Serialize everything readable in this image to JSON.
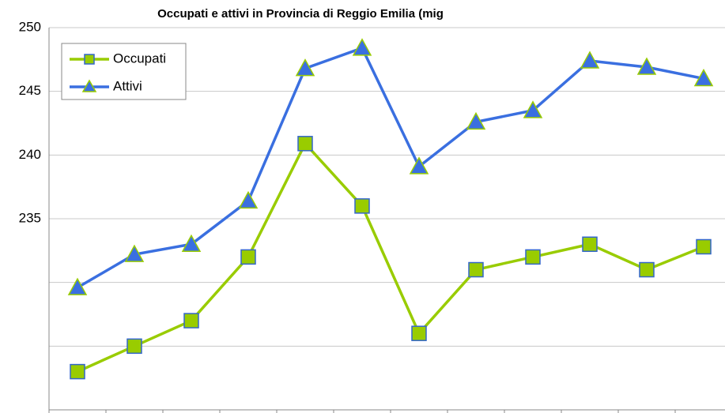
{
  "chart_data": {
    "type": "line",
    "title": "Occupati e attivi in Provincia di Reggio Emilia (mig",
    "categories": [
      null,
      null,
      null,
      null,
      null,
      null,
      null,
      null,
      null,
      null,
      null,
      null
    ],
    "series": [
      {
        "name": "Occupati",
        "color": "#99cc00",
        "marker": "square",
        "marker_color": "#99cc00",
        "marker_edge": "#3366cc",
        "values": [
          223.0,
          225.0,
          227.0,
          232.0,
          240.9,
          236.0,
          226.0,
          231.0,
          232.0,
          233.0,
          231.0,
          232.8
        ]
      },
      {
        "name": "Attivi",
        "color": "#3a6fe0",
        "marker": "triangle",
        "marker_color": "#3a6fe0",
        "marker_edge": "#99cc00",
        "values": [
          229.6,
          232.2,
          233.0,
          236.4,
          246.8,
          248.4,
          239.1,
          242.6,
          243.5,
          247.4,
          246.9,
          246.0
        ]
      }
    ],
    "ylim": [
      220,
      250
    ],
    "yticks": [
      235,
      240,
      245,
      250
    ],
    "ygrid": [
      225,
      230,
      235,
      240,
      245,
      250
    ],
    "grid": true,
    "legend": "upper left"
  }
}
